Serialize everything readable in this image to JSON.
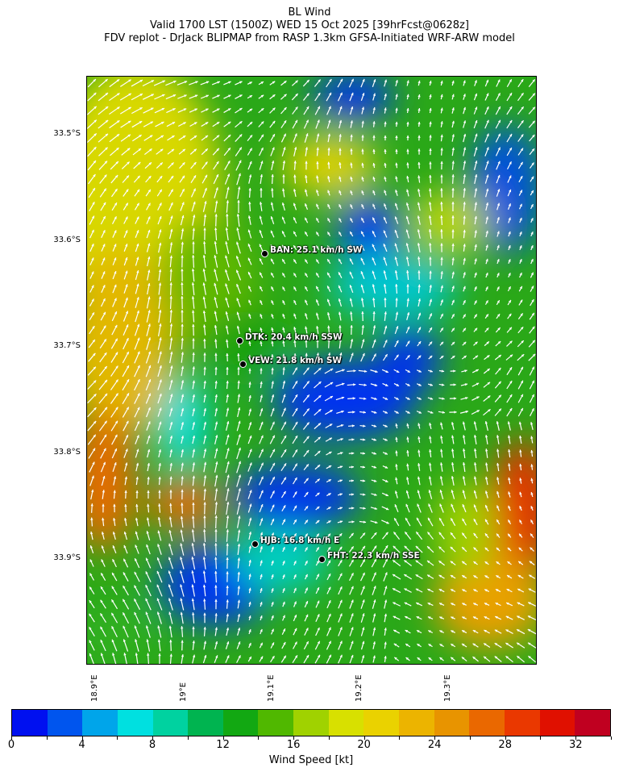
{
  "header": {
    "title": "BL Wind",
    "valid": "Valid 1700 LST (1500Z) WED 15 Oct 2025 [39hrFcst@0628z]",
    "source": "FDV replot - DrJack BLIPMAP from RASP 1.3km GFSA-Initiated WRF-ARW model"
  },
  "axes": {
    "lat_ticks": [
      "33.5°S",
      "33.6°S",
      "33.7°S",
      "33.8°S",
      "33.9°S"
    ],
    "lon_ticks": [
      "18.9°E",
      "19°E",
      "19.1°E",
      "19.2°E",
      "19.3°E"
    ]
  },
  "stations": [
    {
      "label": "BAN: 25.1 km/h SW"
    },
    {
      "label": "DTK: 20.4 km/h SSW"
    },
    {
      "label": "VEW: 21.8 km/h SW"
    },
    {
      "label": "HJB: 16.8 km/h E"
    },
    {
      "label": "FHT: 22.3 km/h SSE"
    }
  ],
  "colorbar": {
    "label": "Wind Speed [kt]",
    "tick_labels": [
      "0",
      "4",
      "8",
      "12",
      "16",
      "20",
      "24",
      "28",
      "32"
    ],
    "range": [
      0,
      34
    ],
    "step": 2,
    "colors": [
      "#0010f0",
      "#0055ee",
      "#00a5ea",
      "#00e0e0",
      "#00d2a0",
      "#00b450",
      "#12a812",
      "#50b800",
      "#a0d200",
      "#d8e000",
      "#ead200",
      "#ecb400",
      "#e89400",
      "#ea6800",
      "#ea3800",
      "#e01000",
      "#c00020"
    ]
  },
  "map": {
    "arrow_color": "#ffffff",
    "station_marker_color": "#000000"
  }
}
